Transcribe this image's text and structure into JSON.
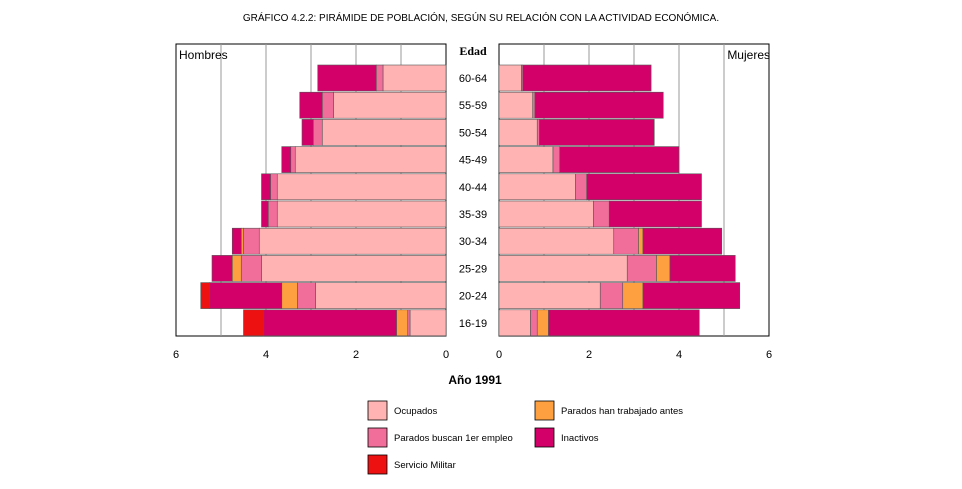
{
  "chart_data": {
    "type": "bar",
    "subtype": "population-pyramid-stacked",
    "title": "GRÁFICO 4.2.2: PIRÁMIDE DE POBLACIÓN, SEGÚN SU RELACIÓN CON LA ACTIVIDAD ECONÓMICA.",
    "left_label": "Hombres",
    "right_label": "Mujeres",
    "center_label": "Edad",
    "xlabel": "Año 1991",
    "xlim": [
      0,
      6
    ],
    "x_ticks": [
      "0",
      "2",
      "4",
      "6"
    ],
    "grid": true,
    "categories": [
      "60-64",
      "55-59",
      "50-54",
      "45-49",
      "40-44",
      "35-39",
      "30-34",
      "25-29",
      "20-24",
      "16-19"
    ],
    "series": [
      {
        "name": "Ocupados",
        "color": "#FFB3B3",
        "hombres": [
          1.4,
          2.5,
          2.75,
          3.35,
          3.75,
          3.75,
          4.15,
          4.1,
          2.9,
          0.8
        ],
        "mujeres": [
          0.5,
          0.75,
          0.85,
          1.2,
          1.7,
          2.1,
          2.55,
          2.85,
          2.25,
          0.7
        ]
      },
      {
        "name": "Parados buscan 1er empleo",
        "color": "#F26E9A",
        "hombres": [
          0.15,
          0.25,
          0.2,
          0.1,
          0.15,
          0.2,
          0.35,
          0.45,
          0.4,
          0.05
        ],
        "mujeres": [
          0.03,
          0.05,
          0.05,
          0.15,
          0.25,
          0.35,
          0.55,
          0.65,
          0.5,
          0.15
        ]
      },
      {
        "name": "Parados han trabajado antes",
        "color": "#FFA040",
        "hombres": [
          0,
          0,
          0,
          0,
          0,
          0,
          0.05,
          0.2,
          0.35,
          0.25
        ],
        "mujeres": [
          0,
          0,
          0,
          0,
          0,
          0,
          0.1,
          0.3,
          0.45,
          0.25
        ]
      },
      {
        "name": "Inactivos",
        "color": "#D4006A",
        "hombres": [
          1.3,
          0.5,
          0.25,
          0.2,
          0.2,
          0.15,
          0.2,
          0.45,
          1.6,
          2.95
        ],
        "mujeres": [
          2.85,
          2.85,
          2.55,
          2.65,
          2.55,
          2.05,
          1.75,
          1.45,
          2.15,
          3.35
        ]
      },
      {
        "name": "Servicio Militar",
        "color": "#EE1111",
        "hombres": [
          0,
          0,
          0,
          0,
          0,
          0,
          0,
          0,
          0.2,
          0.45
        ],
        "mujeres": [
          0,
          0,
          0,
          0,
          0,
          0,
          0,
          0,
          0,
          0
        ]
      }
    ],
    "legend_order": [
      "Ocupados",
      "Parados han trabajado antes",
      "Parados buscan 1er empleo",
      "Inactivos",
      "Servicio Militar"
    ]
  }
}
